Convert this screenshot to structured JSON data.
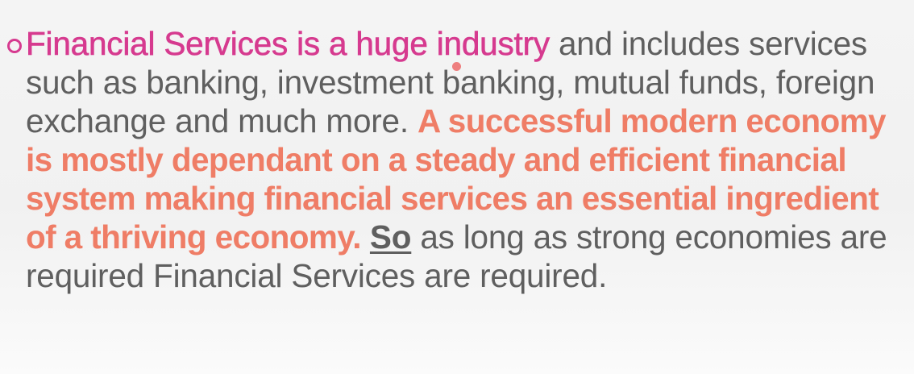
{
  "slide": {
    "bullet_icon": "hollow-circle-bullet",
    "segments": {
      "s1": "Financial Services is a huge industry",
      "s2": " and includes services such as banking, investment banking, mutual funds, foreign exchange and much more. ",
      "s3": "A successful modern economy is mostly dependant on a steady and efficient financial system making financial services an essential ingredient of a thriving economy.",
      "s4": " ",
      "s5": "So",
      "s6": " as long as strong economies are required Financial Services are required."
    },
    "colors": {
      "pink_highlight": "#d63a8f",
      "salmon_highlight": "#ef7d66",
      "body_text": "#5f5f5f",
      "pointer_dot": "#ec6a6a"
    }
  }
}
